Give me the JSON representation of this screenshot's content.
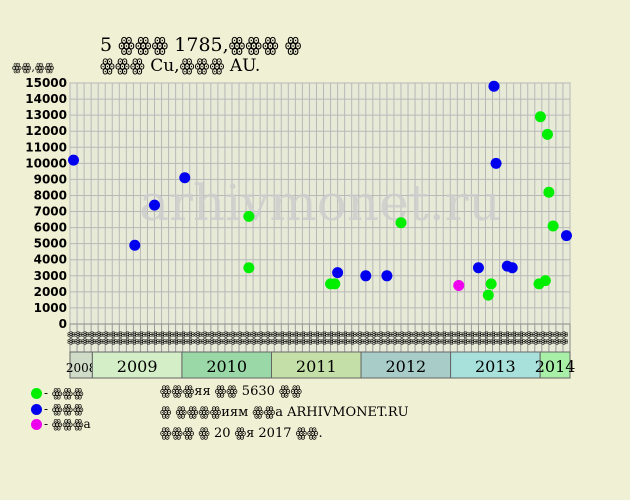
{
  "chart_data": {
    "type": "scatter",
    "title": "5 ꙮꙮꙮ 1785,ꙮꙮꙮ ꙮ",
    "subtitle": "ꙮꙮꙮ Cu,ꙮꙮꙮ AU.",
    "ylabel": "ꙮꙮ,ꙮꙮ",
    "ylim": [
      0,
      15000
    ],
    "y_ticks": [
      0,
      1000,
      2000,
      3000,
      4000,
      5000,
      6000,
      7000,
      8000,
      9000,
      10000,
      11000,
      12000,
      13000,
      14000,
      15000
    ],
    "grid": true,
    "months": [
      "ꙮꙮ",
      "ꙮꙮ",
      "ꙮꙮ",
      "ꙮꙮ",
      "ꙮꙮ",
      "ꙮꙮ",
      "ꙮꙮ",
      "ꙮꙮ",
      "ꙮꙮ",
      "ꙮꙮ",
      "ꙮꙮ",
      "ꙮꙮ"
    ],
    "years": [
      {
        "label": "2008",
        "start": 0,
        "end": 3,
        "color": "#d0dcc8"
      },
      {
        "label": "2009",
        "start": 3,
        "end": 15,
        "color": "#d4efc8"
      },
      {
        "label": "2010",
        "start": 15,
        "end": 27,
        "color": "#9ad8a8"
      },
      {
        "label": "2011",
        "start": 27,
        "end": 39,
        "color": "#c4e0a8"
      },
      {
        "label": "2012",
        "start": 39,
        "end": 51,
        "color": "#a8ccc8"
      },
      {
        "label": "2013",
        "start": 51,
        "end": 63,
        "color": "#a8e0dc"
      },
      {
        "label": "2014",
        "start": 63,
        "end": 67,
        "color": "#a8f0a8"
      }
    ],
    "series": [
      {
        "color": "#00ee00",
        "points": [
          [
            25.4,
            6700
          ],
          [
            25.4,
            3500
          ],
          [
            37,
            2500
          ],
          [
            37.6,
            2500
          ],
          [
            47,
            6300
          ],
          [
            59.4,
            1800
          ],
          [
            59.8,
            2500
          ],
          [
            66.8,
            12900
          ],
          [
            67.8,
            11800
          ],
          [
            68,
            8200
          ],
          [
            68.6,
            6100
          ],
          [
            66.6,
            2500
          ],
          [
            67.5,
            2700
          ]
        ]
      },
      {
        "color": "#0000ee",
        "points": [
          [
            0.5,
            10200
          ],
          [
            9.2,
            4900
          ],
          [
            12,
            7400
          ],
          [
            16.3,
            9100
          ],
          [
            38,
            3200
          ],
          [
            42,
            3000
          ],
          [
            45,
            3000
          ],
          [
            58,
            3500
          ],
          [
            60.2,
            14800
          ],
          [
            60.5,
            10000
          ],
          [
            62.1,
            3600
          ],
          [
            62.8,
            3500
          ],
          [
            70.5,
            5500
          ]
        ]
      },
      {
        "color": "#ee00ee",
        "points": [
          [
            55.2,
            2400
          ]
        ]
      }
    ],
    "watermark": "arhivmonet.ru"
  },
  "legend": [
    {
      "color": "#00ee00",
      "label": "- ꙮꙮꙮ"
    },
    {
      "color": "#0000ee",
      "label": "- ꙮꙮꙮ"
    },
    {
      "color": "#ee00ee",
      "label": "- ꙮꙮꙮa"
    }
  ],
  "notes": [
    "ꙮꙮꙮяя ꙮꙮ 5630 ꙮꙮ",
    "ꙮ ꙮꙮꙮꙮиям ꙮꙮa ARHIVMONET.RU",
    "ꙮꙮꙮ ꙮ 20 ꙮя 2017 ꙮꙮ."
  ]
}
